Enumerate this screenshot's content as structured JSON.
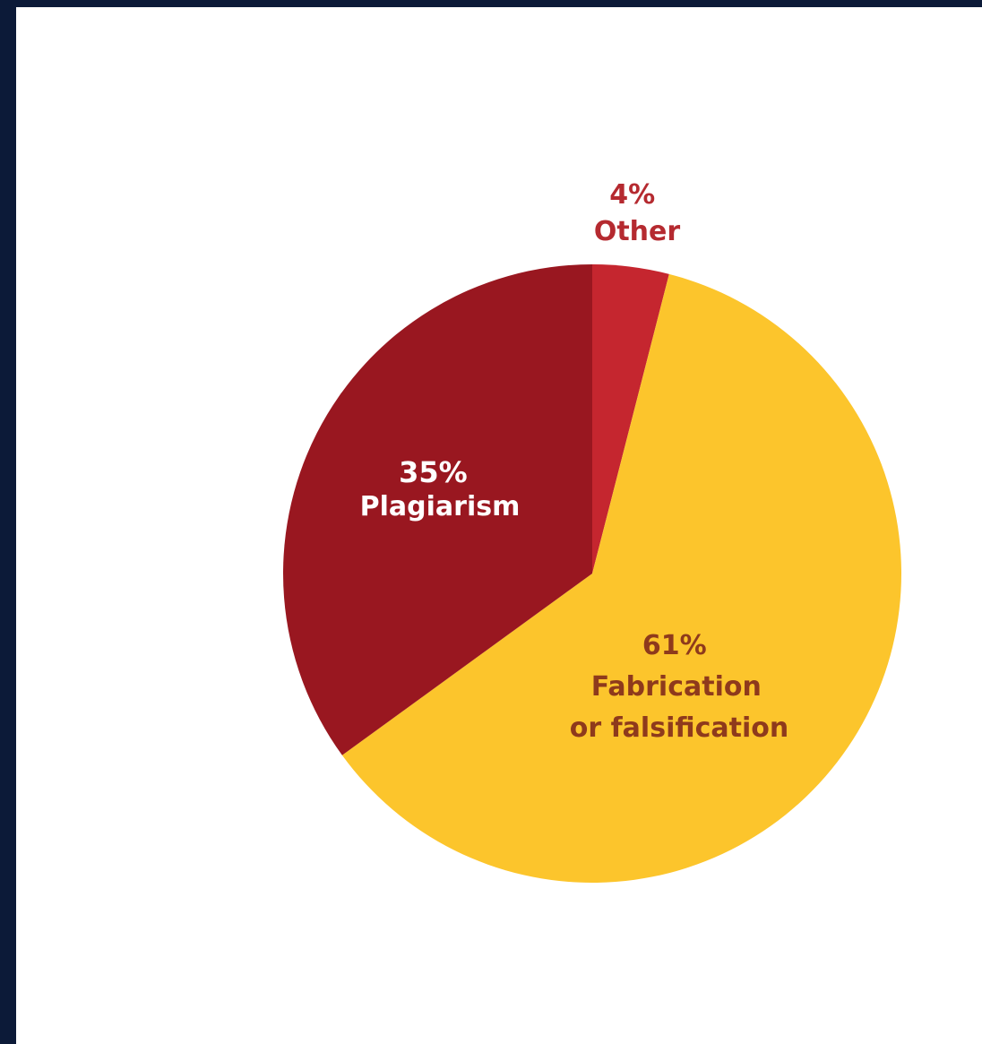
{
  "chart_data": {
    "type": "pie",
    "title": "",
    "start": "top",
    "direction": "clockwise",
    "slices": [
      {
        "label": "Other",
        "pct_text": "4%",
        "value": 4,
        "color": "#c5262f",
        "label_color": "#b52a30",
        "label_position": "outside"
      },
      {
        "label_lines": [
          "Fabrication",
          "or falsification"
        ],
        "pct_text": "61%",
        "value": 61,
        "color": "#fcc52c",
        "label_color": "#8e3a1c",
        "label_position": "inside"
      },
      {
        "label": "Plagiarism",
        "pct_text": "35%",
        "value": 35,
        "color": "#991720",
        "label_color": "#ffffff",
        "label_position": "inside"
      }
    ]
  }
}
